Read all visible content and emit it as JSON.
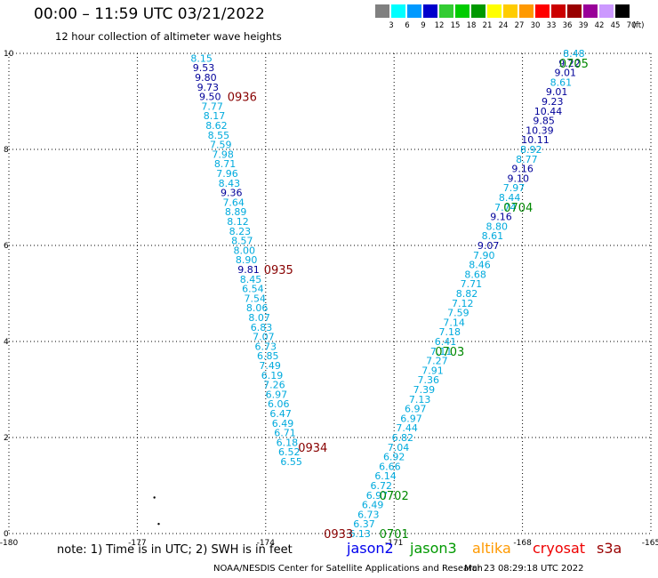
{
  "header": {
    "title": "00:00 – 11:59 UTC 03/21/2022",
    "subtitle": "12 hour collection of altimeter wave heights"
  },
  "legend": {
    "unit": "(ft)",
    "bins": [
      {
        "label": "3",
        "color": "#808080"
      },
      {
        "label": "6",
        "color": "#00ffff"
      },
      {
        "label": "9",
        "color": "#0099ff"
      },
      {
        "label": "12",
        "color": "#0000cc"
      },
      {
        "label": "15",
        "color": "#33cc33"
      },
      {
        "label": "18",
        "color": "#00cc00"
      },
      {
        "label": "21",
        "color": "#009900"
      },
      {
        "label": "24",
        "color": "#ffff00"
      },
      {
        "label": "27",
        "color": "#ffcc00"
      },
      {
        "label": "30",
        "color": "#ff9900"
      },
      {
        "label": "33",
        "color": "#ff0000"
      },
      {
        "label": "36",
        "color": "#cc0000"
      },
      {
        "label": "39",
        "color": "#990000"
      },
      {
        "label": "42",
        "color": "#990099"
      },
      {
        "label": "45",
        "color": "#cc99ff"
      },
      {
        "label": "70",
        "color": "#000000"
      }
    ]
  },
  "footer": {
    "note": "note: 1) Time is in UTC; 2) SWH is in feet",
    "satellites": [
      {
        "name": "jason2",
        "color": "#0000ee"
      },
      {
        "name": "jason3",
        "color": "#009900"
      },
      {
        "name": "altika",
        "color": "#ff9900"
      },
      {
        "name": "cryosat",
        "color": "#ee0000"
      },
      {
        "name": "s3a",
        "color": "#990000"
      }
    ],
    "credit": "NOAA/NESDIS Center for Satellite Applications and Research",
    "timestamp": "Mar 23 08:29:18 UTC 2022"
  },
  "chart_data": {
    "type": "scatter",
    "xlim": [
      -180,
      -165
    ],
    "ylim": [
      0,
      10
    ],
    "x_ticks": [
      "-180",
      "-177",
      "-174",
      "-171",
      "-168",
      "-165"
    ],
    "y_ticks": [
      "0",
      "2",
      "4",
      "6",
      "8",
      "10"
    ],
    "grid": true,
    "colors": {
      "light": "#00aadd",
      "dark": "#000099",
      "time_track_a": "#880000",
      "time_track_b": "#008800"
    },
    "series": [
      {
        "points": [
          {
            "x": -175.5,
            "y": 9.9,
            "v": "8.15",
            "c": "light"
          },
          {
            "x": -175.45,
            "y": 9.7,
            "v": "9.53",
            "c": "dark"
          },
          {
            "x": -175.4,
            "y": 9.5,
            "v": "9.80",
            "c": "dark"
          },
          {
            "x": -175.35,
            "y": 9.3,
            "v": "9.73",
            "c": "dark"
          },
          {
            "x": -175.3,
            "y": 9.1,
            "v": "9.50",
            "c": "dark"
          },
          {
            "x": -175.25,
            "y": 8.9,
            "v": "7.77",
            "c": "light"
          },
          {
            "x": -175.2,
            "y": 8.7,
            "v": "8.17",
            "c": "light"
          },
          {
            "x": -175.15,
            "y": 8.5,
            "v": "8.62",
            "c": "light"
          },
          {
            "x": -175.1,
            "y": 8.3,
            "v": "8.55",
            "c": "light"
          },
          {
            "x": -175.05,
            "y": 8.1,
            "v": "7.59",
            "c": "light"
          },
          {
            "x": -175.0,
            "y": 7.9,
            "v": "7.98",
            "c": "light"
          },
          {
            "x": -174.95,
            "y": 7.7,
            "v": "8.71",
            "c": "light"
          },
          {
            "x": -174.9,
            "y": 7.5,
            "v": "7.96",
            "c": "light"
          },
          {
            "x": -174.85,
            "y": 7.3,
            "v": "8.43",
            "c": "light"
          },
          {
            "x": -174.8,
            "y": 7.1,
            "v": "9.36",
            "c": "dark"
          },
          {
            "x": -174.75,
            "y": 6.9,
            "v": "7.64",
            "c": "light"
          },
          {
            "x": -174.7,
            "y": 6.7,
            "v": "8.89",
            "c": "light"
          },
          {
            "x": -174.65,
            "y": 6.5,
            "v": "8.12",
            "c": "light"
          },
          {
            "x": -174.6,
            "y": 6.3,
            "v": "8.23",
            "c": "light"
          },
          {
            "x": -174.55,
            "y": 6.1,
            "v": "8.57",
            "c": "light"
          },
          {
            "x": -174.5,
            "y": 5.9,
            "v": "8.00",
            "c": "light"
          },
          {
            "x": -174.45,
            "y": 5.7,
            "v": "8.90",
            "c": "light"
          },
          {
            "x": -174.4,
            "y": 5.5,
            "v": "9.81",
            "c": "dark"
          },
          {
            "x": -174.35,
            "y": 5.3,
            "v": "8.45",
            "c": "light"
          },
          {
            "x": -174.3,
            "y": 5.1,
            "v": "6.54",
            "c": "light"
          },
          {
            "x": -174.25,
            "y": 4.9,
            "v": "7.54",
            "c": "light"
          },
          {
            "x": -174.2,
            "y": 4.7,
            "v": "8.06",
            "c": "light"
          },
          {
            "x": -174.15,
            "y": 4.5,
            "v": "8.07",
            "c": "light"
          },
          {
            "x": -174.1,
            "y": 4.3,
            "v": "6.83",
            "c": "light"
          },
          {
            "x": -174.05,
            "y": 4.1,
            "v": "7.07",
            "c": "light"
          },
          {
            "x": -174.0,
            "y": 3.9,
            "v": "6.73",
            "c": "light"
          },
          {
            "x": -173.95,
            "y": 3.7,
            "v": "6.85",
            "c": "light"
          },
          {
            "x": -173.9,
            "y": 3.5,
            "v": "7.49",
            "c": "light"
          },
          {
            "x": -173.85,
            "y": 3.3,
            "v": "6.19",
            "c": "light"
          },
          {
            "x": -173.8,
            "y": 3.1,
            "v": "7.26",
            "c": "light"
          },
          {
            "x": -173.75,
            "y": 2.9,
            "v": "6.97",
            "c": "light"
          },
          {
            "x": -173.7,
            "y": 2.7,
            "v": "6.06",
            "c": "light"
          },
          {
            "x": -173.65,
            "y": 2.5,
            "v": "6.47",
            "c": "light"
          },
          {
            "x": -173.6,
            "y": 2.3,
            "v": "6.49",
            "c": "light"
          },
          {
            "x": -173.55,
            "y": 2.1,
            "v": "6.71",
            "c": "light"
          },
          {
            "x": -173.5,
            "y": 1.9,
            "v": "6.18",
            "c": "light"
          },
          {
            "x": -173.45,
            "y": 1.7,
            "v": "6.52",
            "c": "light"
          },
          {
            "x": -173.4,
            "y": 1.5,
            "v": "6.55",
            "c": "light"
          }
        ]
      },
      {
        "points": [
          {
            "x": -171.8,
            "y": 0.0,
            "v": "6.13",
            "c": "light"
          },
          {
            "x": -171.7,
            "y": 0.2,
            "v": "6.37",
            "c": "light"
          },
          {
            "x": -171.6,
            "y": 0.4,
            "v": "6.73",
            "c": "light"
          },
          {
            "x": -171.5,
            "y": 0.6,
            "v": "6.49",
            "c": "light"
          },
          {
            "x": -171.4,
            "y": 0.8,
            "v": "6.97",
            "c": "light"
          },
          {
            "x": -171.3,
            "y": 1.0,
            "v": "6.72",
            "c": "light"
          },
          {
            "x": -171.2,
            "y": 1.2,
            "v": "6.14",
            "c": "light"
          },
          {
            "x": -171.1,
            "y": 1.4,
            "v": "6.66",
            "c": "light"
          },
          {
            "x": -171.0,
            "y": 1.6,
            "v": "6.92",
            "c": "light"
          },
          {
            "x": -170.9,
            "y": 1.8,
            "v": "7.04",
            "c": "light"
          },
          {
            "x": -170.8,
            "y": 2.0,
            "v": "6.82",
            "c": "light"
          },
          {
            "x": -170.7,
            "y": 2.2,
            "v": "7.44",
            "c": "light"
          },
          {
            "x": -170.6,
            "y": 2.4,
            "v": "6.97",
            "c": "light"
          },
          {
            "x": -170.5,
            "y": 2.6,
            "v": "6.97",
            "c": "light"
          },
          {
            "x": -170.4,
            "y": 2.8,
            "v": "7.13",
            "c": "light"
          },
          {
            "x": -170.3,
            "y": 3.0,
            "v": "7.39",
            "c": "light"
          },
          {
            "x": -170.2,
            "y": 3.2,
            "v": "7.36",
            "c": "light"
          },
          {
            "x": -170.1,
            "y": 3.4,
            "v": "7.91",
            "c": "light"
          },
          {
            "x": -170.0,
            "y": 3.6,
            "v": "7.27",
            "c": "light"
          },
          {
            "x": -169.9,
            "y": 3.8,
            "v": "7.11",
            "c": "light"
          },
          {
            "x": -169.8,
            "y": 4.0,
            "v": "6.41",
            "c": "light"
          },
          {
            "x": -169.7,
            "y": 4.2,
            "v": "7.18",
            "c": "light"
          },
          {
            "x": -169.6,
            "y": 4.4,
            "v": "7.14",
            "c": "light"
          },
          {
            "x": -169.5,
            "y": 4.6,
            "v": "7.59",
            "c": "light"
          },
          {
            "x": -169.4,
            "y": 4.8,
            "v": "7.12",
            "c": "light"
          },
          {
            "x": -169.3,
            "y": 5.0,
            "v": "8.82",
            "c": "light"
          },
          {
            "x": -169.2,
            "y": 5.2,
            "v": "7.71",
            "c": "light"
          },
          {
            "x": -169.1,
            "y": 5.4,
            "v": "8.68",
            "c": "light"
          },
          {
            "x": -169.0,
            "y": 5.6,
            "v": "8.46",
            "c": "light"
          },
          {
            "x": -168.9,
            "y": 5.8,
            "v": "7.90",
            "c": "light"
          },
          {
            "x": -168.8,
            "y": 6.0,
            "v": "9.07",
            "c": "dark"
          },
          {
            "x": -168.7,
            "y": 6.2,
            "v": "8.61",
            "c": "light"
          },
          {
            "x": -168.6,
            "y": 6.4,
            "v": "8.80",
            "c": "light"
          },
          {
            "x": -168.5,
            "y": 6.6,
            "v": "9.16",
            "c": "dark"
          },
          {
            "x": -168.4,
            "y": 6.8,
            "v": "7.74",
            "c": "light"
          },
          {
            "x": -168.3,
            "y": 7.0,
            "v": "8.44",
            "c": "light"
          },
          {
            "x": -168.2,
            "y": 7.2,
            "v": "7.97",
            "c": "light"
          },
          {
            "x": -168.1,
            "y": 7.4,
            "v": "9.10",
            "c": "dark"
          },
          {
            "x": -168.0,
            "y": 7.6,
            "v": "9.16",
            "c": "dark"
          },
          {
            "x": -167.9,
            "y": 7.8,
            "v": "8.77",
            "c": "light"
          },
          {
            "x": -167.8,
            "y": 8.0,
            "v": "8.92",
            "c": "light"
          },
          {
            "x": -167.7,
            "y": 8.2,
            "v": "10.11",
            "c": "dark"
          },
          {
            "x": -167.6,
            "y": 8.4,
            "v": "10.39",
            "c": "dark"
          },
          {
            "x": -167.5,
            "y": 8.6,
            "v": "9.85",
            "c": "dark"
          },
          {
            "x": -167.4,
            "y": 8.8,
            "v": "10.44",
            "c": "dark"
          },
          {
            "x": -167.3,
            "y": 9.0,
            "v": "9.23",
            "c": "dark"
          },
          {
            "x": -167.2,
            "y": 9.2,
            "v": "9.01",
            "c": "dark"
          },
          {
            "x": -167.1,
            "y": 9.4,
            "v": "8.61",
            "c": "light"
          },
          {
            "x": -167.0,
            "y": 9.6,
            "v": "9.01",
            "c": "dark"
          },
          {
            "x": -166.9,
            "y": 9.8,
            "v": "9.22",
            "c": "dark"
          },
          {
            "x": -166.8,
            "y": 10.0,
            "v": "8.48",
            "c": "light"
          }
        ]
      }
    ],
    "time_labels": [
      {
        "x": -174.55,
        "y": 9.1,
        "text": "0936",
        "c": "time_track_a"
      },
      {
        "x": -173.7,
        "y": 5.5,
        "text": "0935",
        "c": "time_track_a"
      },
      {
        "x": -172.9,
        "y": 1.8,
        "text": "0934",
        "c": "time_track_a"
      },
      {
        "x": -172.3,
        "y": 0.0,
        "text": "0933",
        "c": "time_track_a"
      },
      {
        "x": -171.0,
        "y": 0.0,
        "text": "0701",
        "c": "time_track_b"
      },
      {
        "x": -171.0,
        "y": 0.8,
        "text": "0702",
        "c": "time_track_b"
      },
      {
        "x": -169.7,
        "y": 3.8,
        "text": "0703",
        "c": "time_track_b"
      },
      {
        "x": -168.1,
        "y": 6.8,
        "text": "0704",
        "c": "time_track_b"
      },
      {
        "x": -166.8,
        "y": 9.8,
        "text": "0705",
        "c": "time_track_b"
      }
    ],
    "land_dots": [
      {
        "x": -176.6,
        "y": 0.75
      },
      {
        "x": -176.5,
        "y": 0.2
      }
    ]
  }
}
